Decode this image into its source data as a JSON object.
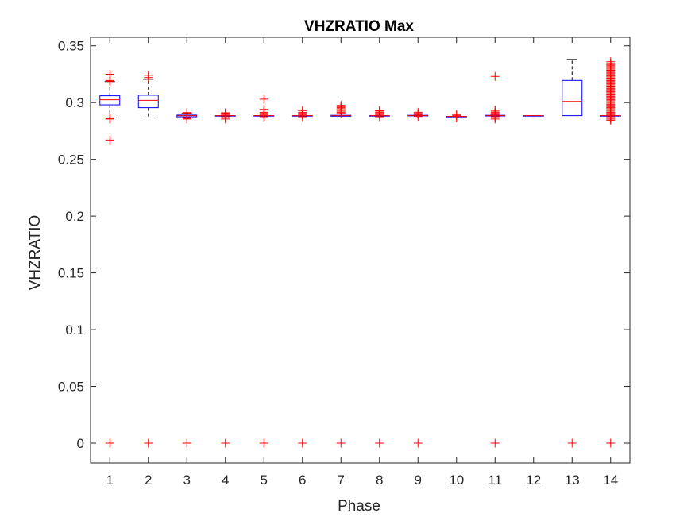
{
  "chart_data": {
    "type": "box",
    "title": "VHZRATIO Max",
    "xlabel": "Phase",
    "ylabel": "VHZRATIO",
    "ylim": [
      -0.0175,
      0.3575
    ],
    "yticks": [
      0,
      0.05,
      0.1,
      0.15,
      0.2,
      0.25,
      0.3,
      0.35
    ],
    "ytick_labels": [
      "0",
      "0.05",
      "0.1",
      "0.15",
      "0.2",
      "0.25",
      "0.3",
      "0.35"
    ],
    "xticks": [
      1,
      2,
      3,
      4,
      5,
      6,
      7,
      8,
      9,
      10,
      11,
      12,
      13,
      14
    ],
    "xtick_labels": [
      "1",
      "2",
      "3",
      "4",
      "5",
      "6",
      "7",
      "8",
      "9",
      "10",
      "11",
      "12",
      "13",
      "14"
    ],
    "grid": false,
    "colors": {
      "box": "#0000ff",
      "median": "#ff0000",
      "whisker": "#000000",
      "outlier": "#ff0000"
    },
    "boxes": [
      {
        "x": 1,
        "q1": 0.298,
        "median": 0.3025,
        "q3": 0.306,
        "lower_whisker": 0.2865,
        "upper_whisker": 0.3185,
        "outliers": [
          0,
          0.267,
          0.2855,
          0.2858,
          0.3188,
          0.3195,
          0.325
        ]
      },
      {
        "x": 2,
        "q1": 0.2955,
        "median": 0.302,
        "q3": 0.3065,
        "lower_whisker": 0.2865,
        "upper_whisker": 0.3205,
        "outliers": [
          0,
          0.322,
          0.324
        ]
      },
      {
        "x": 3,
        "q1": 0.2875,
        "median": 0.2885,
        "q3": 0.289,
        "lower_whisker": 0.2865,
        "upper_whisker": 0.2905,
        "outliers": [
          0,
          0.2855,
          0.2862,
          0.2868,
          0.2908,
          0.2912
        ]
      },
      {
        "x": 4,
        "q1": 0.2885,
        "median": 0.2885,
        "q3": 0.2885,
        "lower_whisker": 0.2885,
        "upper_whisker": 0.2885,
        "outliers": [
          0,
          0.2855,
          0.2865,
          0.2875,
          0.2895,
          0.2905,
          0.291
        ]
      },
      {
        "x": 5,
        "q1": 0.2885,
        "median": 0.2885,
        "q3": 0.2885,
        "lower_whisker": 0.2885,
        "upper_whisker": 0.2885,
        "outliers": [
          0,
          0.2875,
          0.2895,
          0.29,
          0.2905,
          0.2915,
          0.294,
          0.303
        ]
      },
      {
        "x": 6,
        "q1": 0.2885,
        "median": 0.2885,
        "q3": 0.2885,
        "lower_whisker": 0.2885,
        "upper_whisker": 0.2885,
        "outliers": [
          0,
          0.2875,
          0.2895,
          0.2905,
          0.2915,
          0.293
        ]
      },
      {
        "x": 7,
        "q1": 0.288,
        "median": 0.2885,
        "q3": 0.2888,
        "lower_whisker": 0.288,
        "upper_whisker": 0.289,
        "outliers": [
          0,
          0.2905,
          0.2915,
          0.2925,
          0.2935,
          0.2945,
          0.2955,
          0.2965,
          0.2975
        ]
      },
      {
        "x": 8,
        "q1": 0.2885,
        "median": 0.2885,
        "q3": 0.2885,
        "lower_whisker": 0.2885,
        "upper_whisker": 0.2885,
        "outliers": [
          0,
          0.2875,
          0.2895,
          0.2905,
          0.2915,
          0.2925,
          0.293
        ]
      },
      {
        "x": 9,
        "q1": 0.2883,
        "median": 0.2885,
        "q3": 0.2888,
        "lower_whisker": 0.2883,
        "upper_whisker": 0.2888,
        "outliers": [
          0,
          0.2878,
          0.2895,
          0.2905,
          0.2915
        ]
      },
      {
        "x": 10,
        "q1": 0.2878,
        "median": 0.2878,
        "q3": 0.2878,
        "lower_whisker": 0.2878,
        "upper_whisker": 0.2878,
        "outliers": [
          0.2865,
          0.2885,
          0.2895
        ]
      },
      {
        "x": 11,
        "q1": 0.2882,
        "median": 0.2885,
        "q3": 0.2888,
        "lower_whisker": 0.2882,
        "upper_whisker": 0.2888,
        "outliers": [
          0,
          0.2855,
          0.2865,
          0.2875,
          0.2895,
          0.2905,
          0.2915,
          0.2925,
          0.2935,
          0.323
        ]
      },
      {
        "x": 12,
        "q1": 0.2885,
        "median": 0.2885,
        "q3": 0.2885,
        "lower_whisker": 0.2885,
        "upper_whisker": 0.2885,
        "outliers": []
      },
      {
        "x": 13,
        "q1": 0.2885,
        "median": 0.301,
        "q3": 0.3195,
        "lower_whisker": 0.2885,
        "upper_whisker": 0.338,
        "outliers": [
          0
        ]
      },
      {
        "x": 14,
        "q1": 0.2885,
        "median": 0.2885,
        "q3": 0.2885,
        "lower_whisker": 0.2885,
        "upper_whisker": 0.2885,
        "outliers": [
          0,
          0.2845,
          0.2855,
          0.2865,
          0.2875,
          0.2895,
          0.2905,
          0.2915,
          0.2925,
          0.2935,
          0.2945,
          0.2955,
          0.2965,
          0.2975,
          0.2985,
          0.2995,
          0.3005,
          0.3015,
          0.3025,
          0.3035,
          0.3045,
          0.3055,
          0.3065,
          0.3075,
          0.3085,
          0.3095,
          0.3105,
          0.3115,
          0.3125,
          0.3135,
          0.3145,
          0.3155,
          0.3165,
          0.3175,
          0.3185,
          0.3195,
          0.3205,
          0.3215,
          0.3225,
          0.3235,
          0.3245,
          0.3255,
          0.3265,
          0.3275,
          0.3285,
          0.3295,
          0.3305,
          0.3315,
          0.3325,
          0.3335,
          0.3345,
          0.336
        ]
      }
    ]
  }
}
